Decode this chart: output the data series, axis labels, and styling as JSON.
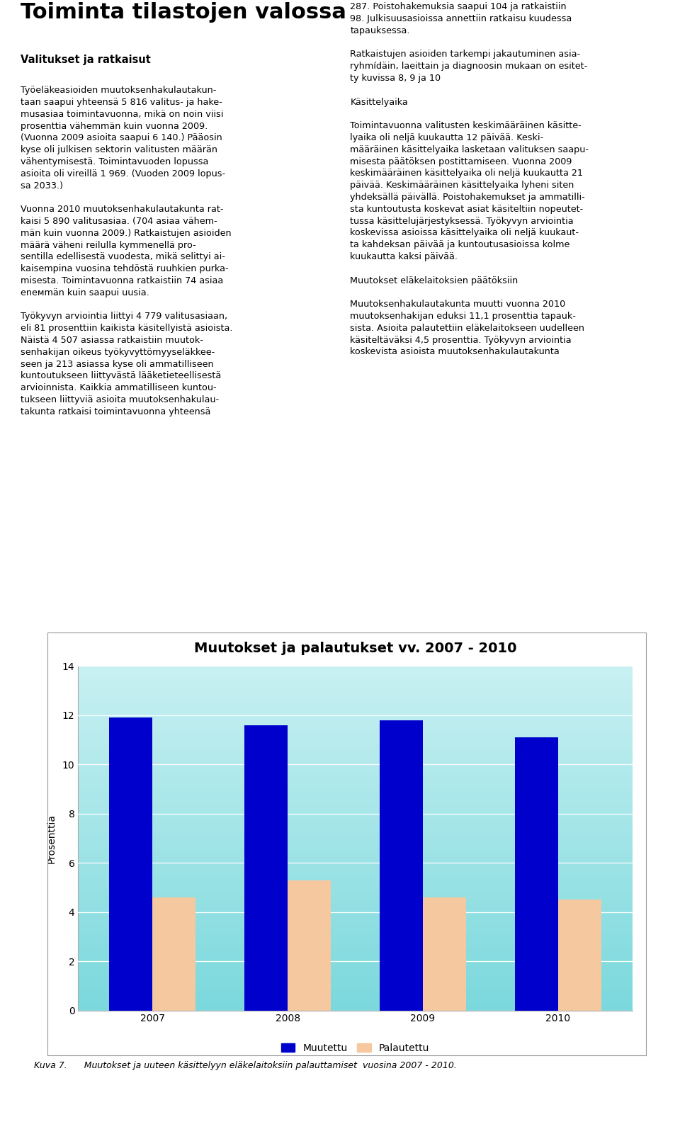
{
  "title": "Muutokset ja palautukset vv. 2007 - 2010",
  "ylabel": "Prosenttia",
  "years": [
    "2007",
    "2008",
    "2009",
    "2010"
  ],
  "muutettu": [
    11.9,
    11.6,
    11.8,
    11.1
  ],
  "palautettu": [
    4.6,
    5.3,
    4.6,
    4.5
  ],
  "bar_color_muutettu": "#0000CC",
  "bar_color_palautettu": "#F5C8A0",
  "ylim": [
    0,
    14
  ],
  "yticks": [
    0,
    2,
    4,
    6,
    8,
    10,
    12,
    14
  ],
  "legend_muutettu": "Muutettu",
  "legend_palautettu": "Palautettu",
  "bg_color_top": "#C8F0F2",
  "bg_color_bottom": "#7AD8DC",
  "title_fontsize": 14,
  "ylabel_fontsize": 10,
  "tick_fontsize": 10,
  "caption": "Kuva 7.      Muutokset ja uuteen käsittelyyn eläkelaitoksiin palauttamiset  vuosina 2007 - 2010.",
  "page_bg": "#FFFFFF",
  "bar_width": 0.32,
  "main_title": "Toiminta tilastojen valossa",
  "left_heading": "Valitukset ja ratkaisut",
  "left_body": "Työeläkeasioiden muutoksenhakulautakun-\ntaan saapui yhteensä 5 816 valitus- ja hake-\nmusasiaa toimintavuonna, mikä on noin viisi\nprosenttia vähemmän kuin vuonna 2009.\n(Vuonna 2009 asioita saapui 6 140.) Pääosin\nkyse oli julkisen sektorin valitusten määrän\nvähentymisestä. Toimintavuoden lopussa\nasioita oli vireillä 1 969. (Vuoden 2009 lopus-\nsa 2033.)\n\nVuonna 2010 muutoksenhakulautakunta rat-\nkaisi 5 890 valitusasiaa. (704 asiaa vähem-\nmän kuin vuonna 2009.) Ratkaistujen asioiden\nmäärä väheni reilulla kymmenellä pro-\nsentilla edellisestä vuodesta, mikä selittyi ai-\nkaisempina vuosina tehdöstä ruuhkien purka-\nmisesta. Toimintavuonna ratkaistiin 74 asiaa\nenемmän kuin saapui uusia.\n\nTyökyvyn arviointia liittyi 4 779 valitusasiaan,\neli 81 prosenttiin kaikista käsitellyistä asioista.\nNäistä 4 507 asiassa ratkaistiin muutok-\nsenhakijan oikeus työkyvyttömyyseläkkee-\nseen ja 213 asiassa kyse oli ammatilliseen\nkuntoutukseen liittyvästä lääketieteellisestä\narvioinnista. Kaikkia ammatilliseen kuntou-\ntukseen liittyviä asioita muutoksenhakulau-\ntakunta ratkaisi toimintavuonna yhteensä",
  "right_body": "287. Poistohakemuksia saapui 104 ja ratkaistiin\n98. Julkisuusasioissa annettiin ratkaisu kuudessa\ntapauksessa.\n\nRatkaistujen asioiden tarkempi jakautuminen asia-\nryhmídäin, laeittain ja diagnoosin mukaan on esitet-\nty kuvissa 8, 9 ja 10\n\nKäsittelyaika\n\nToimintavuonna valitusten keskimääräinen käsitte-\nlyaika oli neljä kuukautta 12 päivää. Keski-\nmääräinen käsittelyaika lasketaan valituksen saapu-\nmisesta päätöksen postittamiseen. Vuonna 2009\nkeskimääräinen käsittelyaika oli neljä kuukautta 21\npäivää. Keskimääräinen käsittelyaika lyheni siten\nyhdeksällä päivällä. Poistohakemukset ja ammatilli-\nsta kuntoutusta koskevat asiat käsiteltiin nopeutet-\ntussa käsittelujärjestyksessä. Työkyvyn arviointia\nkoskevissa asioissa käsittelyaika oli neljä kuukaut-\nta kahdeksan päivää ja kuntoutusasioissa kolme\nkuukautta kaksi päivää.\n\nMuutokset eläkelaitoksien päätöksiin\n\nMuutoksenhakulautakunta muutti vuonna 2010\nmuutoksenhakijan eduksi 11,1 prosenttia tapauk-\nsista. Asioita palautettiin eläkelaitokseen uudelleen\nkäsiteltäväksi 4,5 prosenttia. Työkyvyn arviointia\nkoskevista asioista muutoksenhakulautakunta"
}
